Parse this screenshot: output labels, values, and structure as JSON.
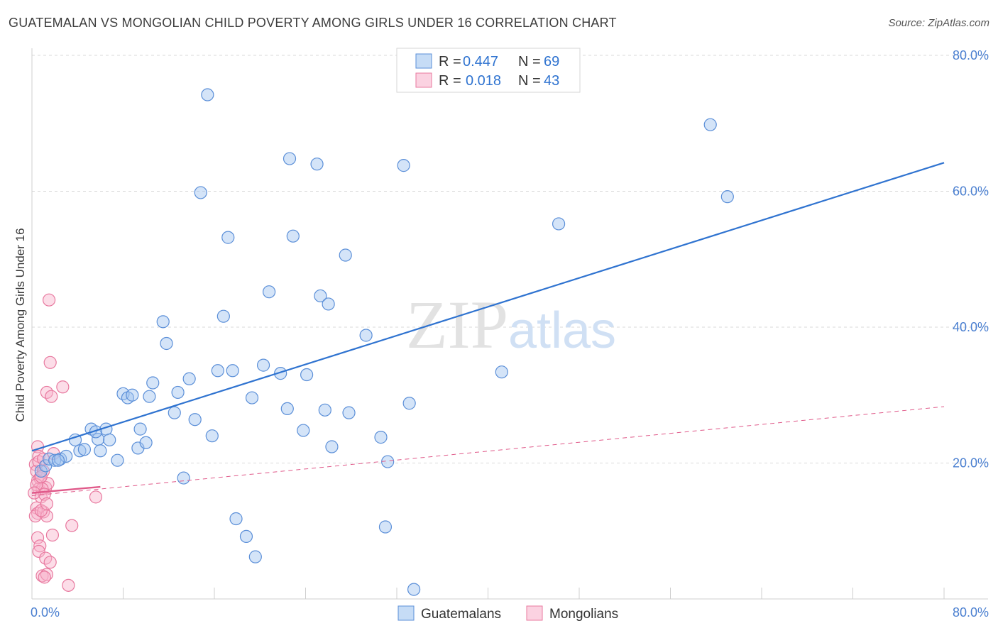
{
  "title": "GUATEMALAN VS MONGOLIAN CHILD POVERTY AMONG GIRLS UNDER 16 CORRELATION CHART",
  "source": "Source: ZipAtlas.com",
  "watermark": {
    "zip": "ZIP",
    "atlas": "atlas"
  },
  "colors": {
    "blue_fill": "rgba(160,196,240,0.45)",
    "blue_stroke": "#5b8fd8",
    "blue_line": "#2f73d0",
    "pink_fill": "rgba(248,180,205,0.45)",
    "pink_stroke": "#e8799f",
    "pink_line": "#e05a8a",
    "tick_label": "#4a7fd0",
    "grid": "#d9d9d9"
  },
  "legend_top": [
    {
      "r_label": "R =",
      "r_value": "0.447",
      "n_label": "N =",
      "n_value": "69",
      "series": "Guatemalans"
    },
    {
      "r_label": "R =",
      "r_value": "0.018",
      "n_label": "N =",
      "n_value": "43",
      "series": "Mongolians"
    }
  ],
  "legend_bottom": [
    "Guatemalans",
    "Mongolians"
  ],
  "chart_data": {
    "type": "scatter",
    "title": "GUATEMALAN VS MONGOLIAN CHILD POVERTY AMONG GIRLS UNDER 16 CORRELATION CHART",
    "xlabel": "",
    "ylabel": "Child Poverty Among Girls Under 16",
    "xlim": [
      0,
      80
    ],
    "ylim": [
      0,
      80
    ],
    "y_ticks": [
      20,
      40,
      60,
      80
    ],
    "y_tick_labels": [
      "20.0%",
      "40.0%",
      "60.0%",
      "80.0%"
    ],
    "x_tick_labels": [
      "0.0%",
      "80.0%"
    ],
    "grid": true,
    "series": [
      {
        "name": "Guatemalans",
        "r": 0.447,
        "n": 69,
        "trend": {
          "x": [
            0,
            80
          ],
          "y": [
            21.8,
            64.2
          ],
          "style": "solid"
        },
        "points": [
          [
            0.8,
            18.8
          ],
          [
            1.2,
            19.6
          ],
          [
            1.5,
            20.6
          ],
          [
            2.0,
            20.4
          ],
          [
            2.5,
            20.6
          ],
          [
            3.0,
            21.0
          ],
          [
            3.8,
            23.4
          ],
          [
            4.2,
            21.8
          ],
          [
            4.6,
            22.0
          ],
          [
            5.2,
            25.0
          ],
          [
            5.8,
            23.5
          ],
          [
            6.0,
            21.8
          ],
          [
            6.5,
            25.0
          ],
          [
            6.8,
            23.4
          ],
          [
            7.5,
            20.4
          ],
          [
            8.0,
            30.2
          ],
          [
            8.4,
            29.6
          ],
          [
            8.8,
            30.0
          ],
          [
            9.3,
            22.2
          ],
          [
            9.5,
            25.0
          ],
          [
            10.0,
            23.0
          ],
          [
            10.3,
            29.8
          ],
          [
            10.6,
            31.8
          ],
          [
            11.5,
            40.8
          ],
          [
            11.8,
            37.6
          ],
          [
            12.5,
            27.4
          ],
          [
            12.8,
            30.4
          ],
          [
            13.3,
            17.8
          ],
          [
            13.8,
            32.4
          ],
          [
            14.3,
            26.4
          ],
          [
            14.8,
            59.8
          ],
          [
            15.4,
            74.2
          ],
          [
            15.8,
            24.0
          ],
          [
            16.3,
            33.6
          ],
          [
            16.8,
            41.6
          ],
          [
            17.2,
            53.2
          ],
          [
            17.6,
            33.6
          ],
          [
            17.9,
            11.8
          ],
          [
            18.8,
            9.2
          ],
          [
            19.3,
            29.6
          ],
          [
            19.6,
            6.2
          ],
          [
            20.3,
            34.4
          ],
          [
            20.8,
            45.2
          ],
          [
            21.8,
            33.2
          ],
          [
            22.4,
            28.0
          ],
          [
            22.6,
            64.8
          ],
          [
            22.9,
            53.4
          ],
          [
            23.8,
            24.8
          ],
          [
            24.1,
            33.0
          ],
          [
            25.0,
            64.0
          ],
          [
            25.3,
            44.6
          ],
          [
            25.7,
            27.8
          ],
          [
            26.0,
            43.4
          ],
          [
            26.3,
            22.4
          ],
          [
            27.5,
            50.6
          ],
          [
            27.8,
            27.4
          ],
          [
            29.3,
            38.8
          ],
          [
            30.6,
            23.8
          ],
          [
            31.0,
            10.6
          ],
          [
            31.2,
            20.2
          ],
          [
            32.6,
            63.8
          ],
          [
            33.1,
            28.8
          ],
          [
            33.5,
            1.4
          ],
          [
            41.2,
            33.4
          ],
          [
            46.2,
            55.2
          ],
          [
            59.5,
            69.8
          ],
          [
            61.0,
            59.2
          ],
          [
            2.3,
            20.4
          ],
          [
            5.6,
            24.6
          ]
        ]
      },
      {
        "name": "Mongolians",
        "r": 0.018,
        "n": 43,
        "trend_solid": {
          "x": [
            0,
            6
          ],
          "y": [
            15.6,
            16.5
          ],
          "style": "solid"
        },
        "trend": {
          "x": [
            0,
            80
          ],
          "y": [
            15.2,
            28.3
          ],
          "style": "dashed"
        },
        "points": [
          [
            0.3,
            19.8
          ],
          [
            0.4,
            18.8
          ],
          [
            0.5,
            17.4
          ],
          [
            0.6,
            16.2
          ],
          [
            0.7,
            17.8
          ],
          [
            0.8,
            15.0
          ],
          [
            0.5,
            22.4
          ],
          [
            0.6,
            21.0
          ],
          [
            1.0,
            18.8
          ],
          [
            1.2,
            16.4
          ],
          [
            1.4,
            17.0
          ],
          [
            0.9,
            16.2
          ],
          [
            1.1,
            15.4
          ],
          [
            0.4,
            13.4
          ],
          [
            0.5,
            12.6
          ],
          [
            0.3,
            12.2
          ],
          [
            1.0,
            12.8
          ],
          [
            1.3,
            12.2
          ],
          [
            0.8,
            13.0
          ],
          [
            1.5,
            44.0
          ],
          [
            1.6,
            34.8
          ],
          [
            1.3,
            30.4
          ],
          [
            1.7,
            29.8
          ],
          [
            2.7,
            31.2
          ],
          [
            1.9,
            21.4
          ],
          [
            0.5,
            9.0
          ],
          [
            0.7,
            7.8
          ],
          [
            0.6,
            7.0
          ],
          [
            1.2,
            6.0
          ],
          [
            1.6,
            5.4
          ],
          [
            0.9,
            3.4
          ],
          [
            1.3,
            3.6
          ],
          [
            1.1,
            3.2
          ],
          [
            3.2,
            2.0
          ],
          [
            1.8,
            9.4
          ],
          [
            3.5,
            10.8
          ],
          [
            5.6,
            15.0
          ],
          [
            0.4,
            16.8
          ],
          [
            0.6,
            20.2
          ],
          [
            1.0,
            20.6
          ],
          [
            1.3,
            14.0
          ],
          [
            0.2,
            15.6
          ],
          [
            0.8,
            18.0
          ]
        ]
      }
    ]
  }
}
